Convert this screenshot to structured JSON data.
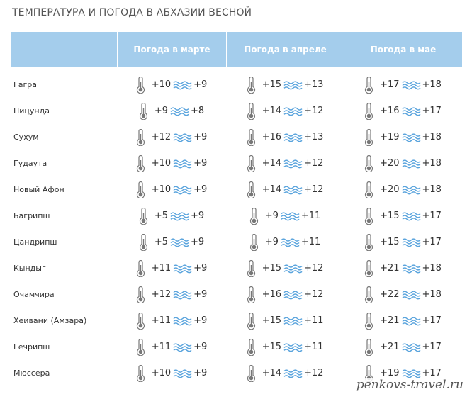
{
  "title": "ТЕМПЕРАТУРА И ПОГОДА В АБХАЗИИ ВЕСНОЙ",
  "headers": [
    "",
    "Погода в марте",
    "Погода в апреле",
    "Погода в мае"
  ],
  "icons": {
    "air": "thermometer-icon",
    "sea": "water-waves-icon"
  },
  "colors": {
    "header_bg": "#a4cdec",
    "waves": "#5aa4dd",
    "thermometer": "#777777"
  },
  "rows": [
    {
      "city": "Гагра",
      "months": [
        {
          "air": "+10",
          "sea": "+9"
        },
        {
          "air": "+15",
          "sea": "+13"
        },
        {
          "air": "+17",
          "sea": "+18"
        }
      ]
    },
    {
      "city": "Пицунда",
      "months": [
        {
          "air": "+9",
          "sea": "+8"
        },
        {
          "air": "+14",
          "sea": "+12"
        },
        {
          "air": "+16",
          "sea": "+17"
        }
      ]
    },
    {
      "city": "Сухум",
      "months": [
        {
          "air": "+12",
          "sea": "+9"
        },
        {
          "air": "+16",
          "sea": "+13"
        },
        {
          "air": "+19",
          "sea": "+18"
        }
      ]
    },
    {
      "city": "Гудаута",
      "months": [
        {
          "air": "+10",
          "sea": "+9"
        },
        {
          "air": "+14",
          "sea": "+12"
        },
        {
          "air": "+20",
          "sea": "+18"
        }
      ]
    },
    {
      "city": "Новый Афон",
      "months": [
        {
          "air": "+10",
          "sea": "+9"
        },
        {
          "air": "+14",
          "sea": "+12"
        },
        {
          "air": "+20",
          "sea": "+18"
        }
      ]
    },
    {
      "city": "Багрипш",
      "months": [
        {
          "air": "+5",
          "sea": "+9"
        },
        {
          "air": "+9",
          "sea": "+11"
        },
        {
          "air": "+15",
          "sea": "+17"
        }
      ]
    },
    {
      "city": "Цандрипш",
      "months": [
        {
          "air": "+5",
          "sea": "+9"
        },
        {
          "air": "+9",
          "sea": "+11"
        },
        {
          "air": "+15",
          "sea": "+17"
        }
      ]
    },
    {
      "city": "Кындыг",
      "months": [
        {
          "air": "+11",
          "sea": "+9"
        },
        {
          "air": "+15",
          "sea": "+12"
        },
        {
          "air": "+21",
          "sea": "+18"
        }
      ]
    },
    {
      "city": "Очамчира",
      "months": [
        {
          "air": "+12",
          "sea": "+9"
        },
        {
          "air": "+16",
          "sea": "+12"
        },
        {
          "air": "+22",
          "sea": "+18"
        }
      ]
    },
    {
      "city": "Хеивани (Амзара)",
      "months": [
        {
          "air": "+11",
          "sea": "+9"
        },
        {
          "air": "+15",
          "sea": "+11"
        },
        {
          "air": "+21",
          "sea": "+17"
        }
      ]
    },
    {
      "city": "Гечрипш",
      "months": [
        {
          "air": "+11",
          "sea": "+9"
        },
        {
          "air": "+15",
          "sea": "+11"
        },
        {
          "air": "+21",
          "sea": "+17"
        }
      ]
    },
    {
      "city": "Мюссера",
      "months": [
        {
          "air": "+10",
          "sea": "+9"
        },
        {
          "air": "+14",
          "sea": "+12"
        },
        {
          "air": "+19",
          "sea": "+17"
        }
      ]
    }
  ],
  "watermark": "penkovs-travel.ru"
}
